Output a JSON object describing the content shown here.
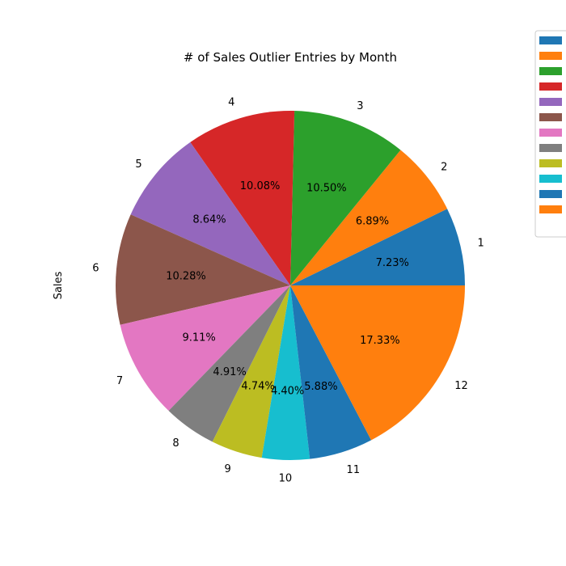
{
  "chart_data": {
    "type": "pie",
    "title": "# of Sales Outlier Entries by Month",
    "ylabel": "Sales",
    "labels": [
      "1",
      "2",
      "3",
      "4",
      "5",
      "6",
      "7",
      "8",
      "9",
      "10",
      "11",
      "12"
    ],
    "values": [
      7.23,
      6.89,
      10.5,
      10.08,
      8.64,
      10.28,
      9.11,
      4.91,
      4.74,
      4.4,
      5.88,
      17.33
    ],
    "percent_labels": [
      "7.23%",
      "6.89%",
      "10.50%",
      "10.08%",
      "8.64%",
      "10.28%",
      "9.11%",
      "4.91%",
      "4.74%",
      "4.40%",
      "5.88%",
      "17.33%"
    ],
    "colors": [
      "#1f77b4",
      "#ff7f0e",
      "#2ca02c",
      "#d62728",
      "#9467bd",
      "#8c564b",
      "#e377c2",
      "#7f7f7f",
      "#bcbd22",
      "#17becf",
      "#1f77b4",
      "#ff7f0e"
    ],
    "start_angle_deg": 0,
    "direction": "counterclockwise",
    "legend": {
      "placement": "top-right",
      "entries": [
        "",
        "",
        "",
        "",
        "",
        "",
        "",
        "",
        "",
        "",
        "",
        ""
      ]
    }
  }
}
